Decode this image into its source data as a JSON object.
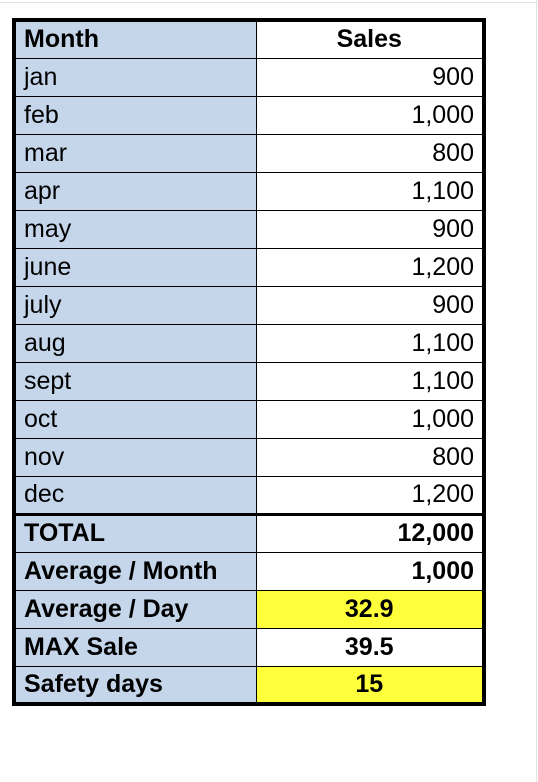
{
  "table": {
    "header": {
      "month": "Month",
      "sales": "Sales"
    },
    "months": [
      {
        "month": "jan",
        "sales": "900"
      },
      {
        "month": "feb",
        "sales": "1,000"
      },
      {
        "month": "mar",
        "sales": "800"
      },
      {
        "month": "apr",
        "sales": "1,100"
      },
      {
        "month": "may",
        "sales": "900"
      },
      {
        "month": "june",
        "sales": "1,200"
      },
      {
        "month": "july",
        "sales": "900"
      },
      {
        "month": "aug",
        "sales": "1,100"
      },
      {
        "month": "sept",
        "sales": "1,100"
      },
      {
        "month": "oct",
        "sales": "1,000"
      },
      {
        "month": "nov",
        "sales": "800"
      },
      {
        "month": "dec",
        "sales": "1,200"
      }
    ],
    "summary": [
      {
        "label": "TOTAL",
        "value": "12,000"
      },
      {
        "label": "Average /  Month",
        "value": "1,000"
      },
      {
        "label": "Average / Day",
        "value": "32.9"
      },
      {
        "label": "MAX Sale",
        "value": "39.5"
      },
      {
        "label": "Safety days",
        "value": "15"
      }
    ]
  },
  "colors": {
    "label_column_fill": "#c5d6ea",
    "highlight_fill": "#ffff3b"
  }
}
